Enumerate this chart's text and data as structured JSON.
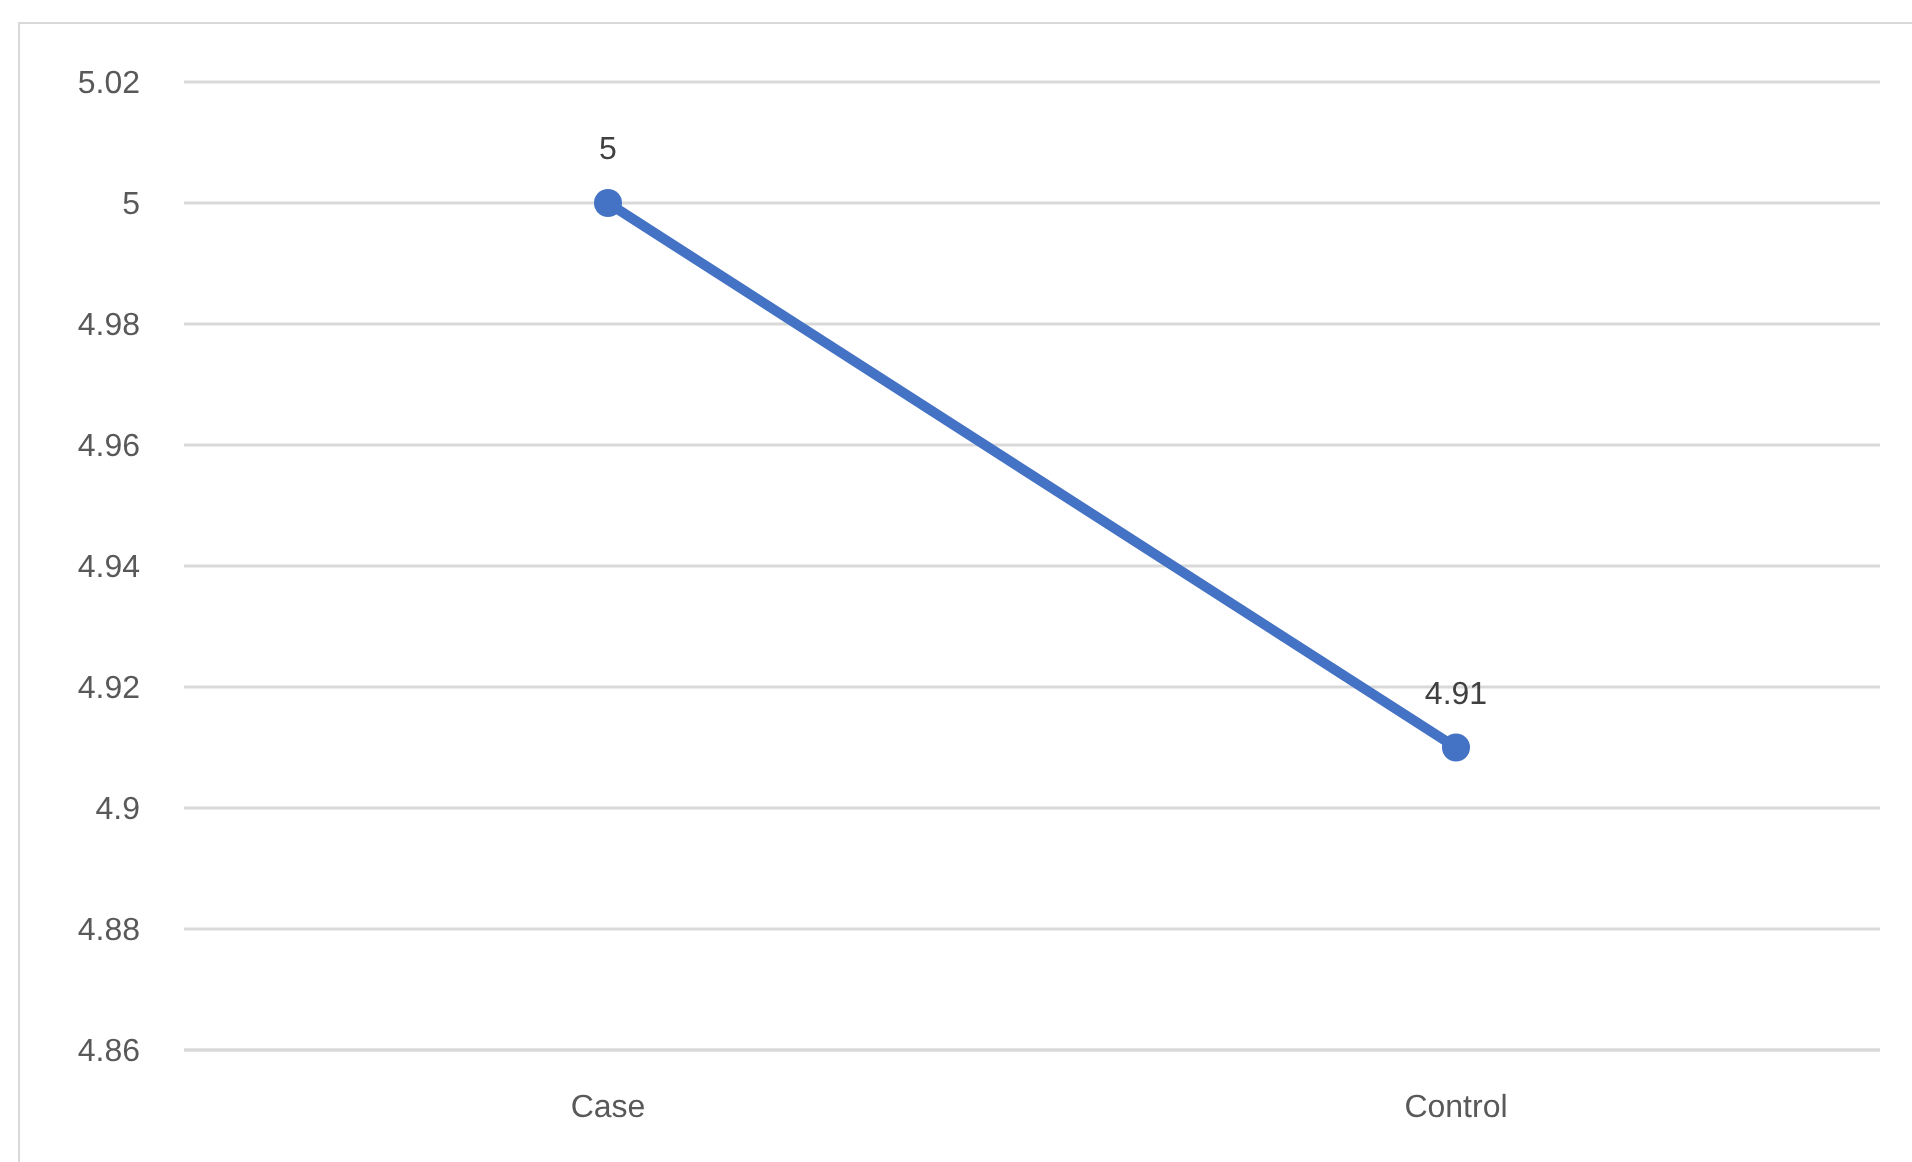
{
  "chart_data": {
    "type": "line",
    "categories": [
      "Case",
      "Control"
    ],
    "series": [
      {
        "color": "#4472c4",
        "values": [
          5,
          4.91
        ]
      }
    ],
    "ylim": [
      4.86,
      5.02
    ],
    "yticks": [
      4.86,
      4.88,
      4.9,
      4.92,
      4.94,
      4.96,
      4.98,
      5,
      5.02
    ],
    "grid": "y",
    "data_labels": true,
    "marker": "circle",
    "line_style": "solid"
  }
}
